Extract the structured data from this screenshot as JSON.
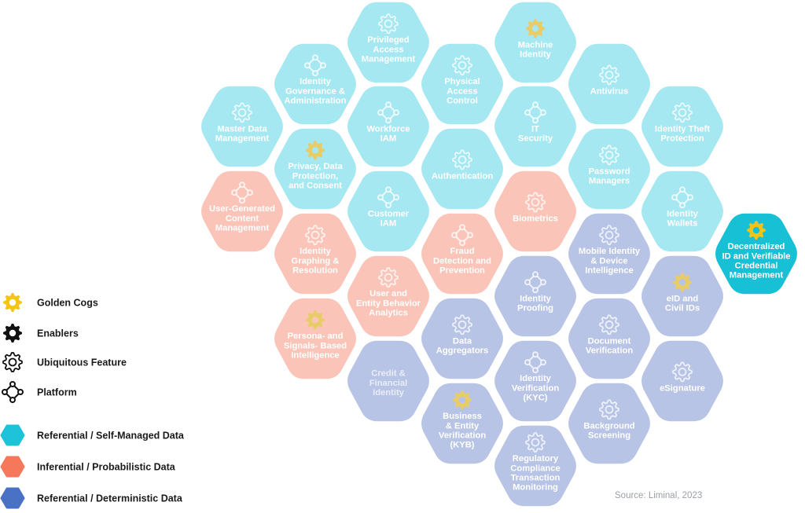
{
  "colors": {
    "referential_self": "#a6e8f1",
    "inferential": "#fac5b8",
    "referential_det": "#b8c4e6",
    "highlight": "#18c0d6",
    "gold": "#f0c418",
    "text_light": "#ffffff"
  },
  "hexes": [
    {
      "label": "Privileged\nAccess\nManagement",
      "category": "referential_self",
      "icon": "gear-icon"
    },
    {
      "label": "Machine\nIdentity",
      "category": "referential_self",
      "icon": "golden-cog-icon"
    },
    {
      "label": "Identity\nGovernance &\nAdministration",
      "category": "referential_self",
      "icon": "platform-icon"
    },
    {
      "label": "Physical\nAccess\nControl",
      "category": "referential_self",
      "icon": "gear-icon"
    },
    {
      "label": "Antivirus",
      "category": "referential_self",
      "icon": "gear-icon"
    },
    {
      "label": "Master Data\nManagement",
      "category": "referential_self",
      "icon": "gear-icon"
    },
    {
      "label": "Workforce\nIAM",
      "category": "referential_self",
      "icon": "platform-icon"
    },
    {
      "label": "IT\nSecurity",
      "category": "referential_self",
      "icon": "platform-icon"
    },
    {
      "label": "Identity Theft\nProtection",
      "category": "referential_self",
      "icon": "gear-icon"
    },
    {
      "label": "Privacy, Data\nProtection,\nand Consent",
      "category": "referential_self",
      "icon": "golden-cog-icon"
    },
    {
      "label": "Authentication",
      "category": "referential_self",
      "icon": "gear-icon"
    },
    {
      "label": "Password\nManagers",
      "category": "referential_self",
      "icon": "gear-icon"
    },
    {
      "label": "User-Generated\nContent\nManagement",
      "category": "inferential",
      "icon": "platform-icon"
    },
    {
      "label": "Customer\nIAM",
      "category": "referential_self",
      "icon": "platform-icon"
    },
    {
      "label": "Biometrics",
      "category": "inferential",
      "icon": "gear-icon"
    },
    {
      "label": "Identity\nWallets",
      "category": "referential_self",
      "icon": "platform-icon"
    },
    {
      "label": "Identity\nGraphing &\nResolution",
      "category": "inferential",
      "icon": "gear-icon"
    },
    {
      "label": "Fraud\nDetection and\nPrevention",
      "category": "inferential",
      "icon": "platform-icon"
    },
    {
      "label": "Mobile Identity\n& Device\nIntelligence",
      "category": "referential_det",
      "icon": "gear-icon"
    },
    {
      "label": "Decentralized\nID and Verifiable\nCredential\nManagement",
      "category": "highlight",
      "icon": "golden-cog-icon"
    },
    {
      "label": "User and\nEntity Behavior\nAnalytics",
      "category": "inferential",
      "icon": "gear-icon"
    },
    {
      "label": "Identity\nProofing",
      "category": "referential_det",
      "icon": "platform-icon"
    },
    {
      "label": "eID and\nCivil IDs",
      "category": "referential_det",
      "icon": "golden-cog-icon"
    },
    {
      "label": "Persona- and\nSignals- Based\nIntelligence",
      "category": "inferential",
      "icon": "golden-cog-icon"
    },
    {
      "label": "Data\nAggregators",
      "category": "referential_det",
      "icon": "gear-icon"
    },
    {
      "label": "Document\nVerification",
      "category": "referential_det",
      "icon": "gear-icon"
    },
    {
      "label": "Credit &\nFinancial\nIdentity",
      "category": "referential_det",
      "icon": "",
      "faded": true
    },
    {
      "label": "Identity\nVerification\n(KYC)",
      "category": "referential_det",
      "icon": "platform-icon"
    },
    {
      "label": "eSignature",
      "category": "referential_det",
      "icon": "gear-icon"
    },
    {
      "label": "Business\n& Entity\nVerification\n(KYB)",
      "category": "referential_det",
      "icon": "golden-cog-icon"
    },
    {
      "label": "Background\nScreening",
      "category": "referential_det",
      "icon": "gear-icon"
    },
    {
      "label": "Regulatory\nCompliance\nTransaction\nMonitoring",
      "category": "referential_det",
      "icon": "gear-icon"
    }
  ],
  "legend": [
    {
      "label": "Golden Cogs",
      "icon": "golden-cog-icon"
    },
    {
      "label": "Enablers",
      "icon": "enabler-cog-icon"
    },
    {
      "label": "Ubiquitous Feature",
      "icon": "ubiquitous-cog-icon"
    },
    {
      "label": "Platform",
      "icon": "platform-icon"
    },
    {
      "label": "Referential / Self-Managed Data",
      "icon": "hex-swatch-icon",
      "color": "#1fc3d9"
    },
    {
      "label": "Inferential / Probabilistic Data",
      "icon": "hex-swatch-icon",
      "color": "#f6785a"
    },
    {
      "label": "Referential / Deterministic Data",
      "icon": "hex-swatch-icon",
      "color": "#4a72c4"
    }
  ],
  "source": "Source: Liminal, 2023"
}
